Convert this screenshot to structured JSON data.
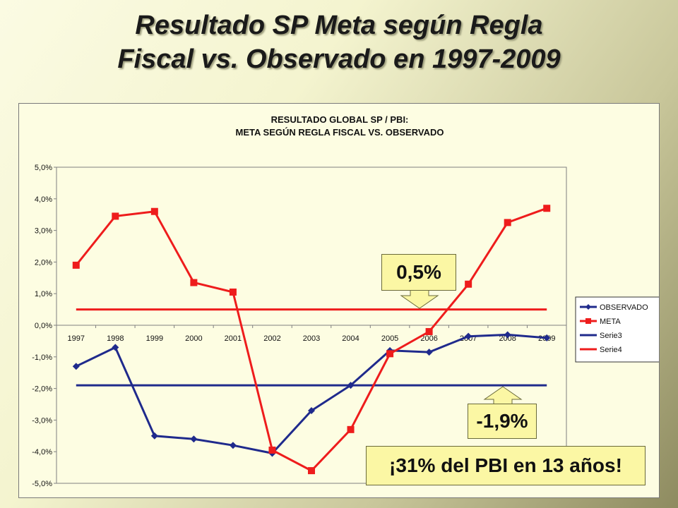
{
  "slide": {
    "title_line1": "Resultado SP Meta según Regla",
    "title_line2": "Fiscal vs. Observado en 1997-2009"
  },
  "callouts": {
    "meta_value": "0,5%",
    "observed_value": "-1,9%",
    "summary": "¡31% del PBI en 13 años!"
  },
  "chart_data": {
    "type": "line",
    "title_line1": "RESULTADO GLOBAL SP / PBI:",
    "title_line2": "META SEGÚN REGLA FISCAL VS. OBSERVADO",
    "categories": [
      "1997",
      "1998",
      "1999",
      "2000",
      "2001",
      "2002",
      "2003",
      "2004",
      "2005",
      "2006",
      "2007",
      "2008",
      "2009"
    ],
    "ylim": [
      -5.0,
      5.0
    ],
    "yticks": [
      5.0,
      4.0,
      3.0,
      2.0,
      1.0,
      0.0,
      -1.0,
      -2.0,
      -3.0,
      -4.0,
      -5.0
    ],
    "ytick_labels": [
      "5,0%",
      "4,0%",
      "3,0%",
      "2,0%",
      "1,0%",
      "0,0%",
      "-1,0%",
      "-2,0%",
      "-3,0%",
      "-4,0%",
      "-5,0%"
    ],
    "grid": false,
    "legend_position": "right",
    "series": [
      {
        "name": "OBSERVADO",
        "color": "#1f2a8c",
        "marker": "diamond",
        "values": [
          -1.3,
          -0.7,
          -3.5,
          -3.6,
          -3.8,
          -4.05,
          -2.7,
          -1.9,
          -0.8,
          -0.85,
          -0.35,
          -0.3,
          -0.4
        ]
      },
      {
        "name": "META",
        "color": "#ee1c1c",
        "marker": "square",
        "values": [
          1.9,
          3.45,
          3.6,
          1.35,
          1.05,
          -3.95,
          -4.6,
          -3.3,
          -0.9,
          -0.2,
          1.3,
          3.25,
          3.7
        ]
      },
      {
        "name": "Serie3",
        "color": "#1f2a8c",
        "marker": "none",
        "values": [
          -1.9,
          -1.9,
          -1.9,
          -1.9,
          -1.9,
          -1.9,
          -1.9,
          -1.9,
          -1.9,
          -1.9,
          -1.9,
          -1.9,
          -1.9
        ]
      },
      {
        "name": "Serie4",
        "color": "#ee1c1c",
        "marker": "none",
        "values": [
          0.5,
          0.5,
          0.5,
          0.5,
          0.5,
          0.5,
          0.5,
          0.5,
          0.5,
          0.5,
          0.5,
          0.5,
          0.5
        ]
      }
    ]
  }
}
